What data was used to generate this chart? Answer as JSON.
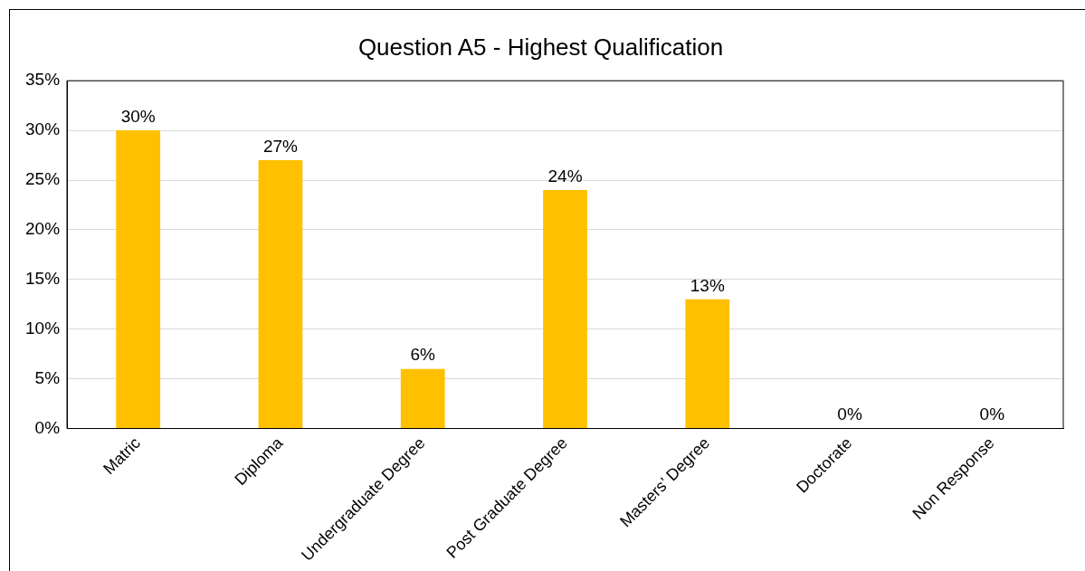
{
  "chart_data": {
    "type": "bar",
    "title": "Question A5 - Highest Qualification",
    "categories": [
      "Matric",
      "Diploma",
      "Undergraduate Degree",
      "Post Graduate Degree",
      "Masters’ Degree",
      "Doctorate",
      "Non Response"
    ],
    "values": [
      30,
      27,
      6,
      24,
      13,
      0,
      0
    ],
    "value_labels": [
      "30%",
      "27%",
      "6%",
      "24%",
      "13%",
      "0%",
      "0%"
    ],
    "color": "#ffc000",
    "ylim": [
      0,
      35
    ],
    "yticks": [
      {
        "value": 0,
        "label": "0%"
      },
      {
        "value": 5,
        "label": "5%"
      },
      {
        "value": 10,
        "label": "10%"
      },
      {
        "value": 15,
        "label": "15%"
      },
      {
        "value": 20,
        "label": "20%"
      },
      {
        "value": 25,
        "label": "25%"
      },
      {
        "value": 30,
        "label": "30%"
      },
      {
        "value": 35,
        "label": "35%"
      }
    ],
    "grid": "y",
    "legend": false
  }
}
